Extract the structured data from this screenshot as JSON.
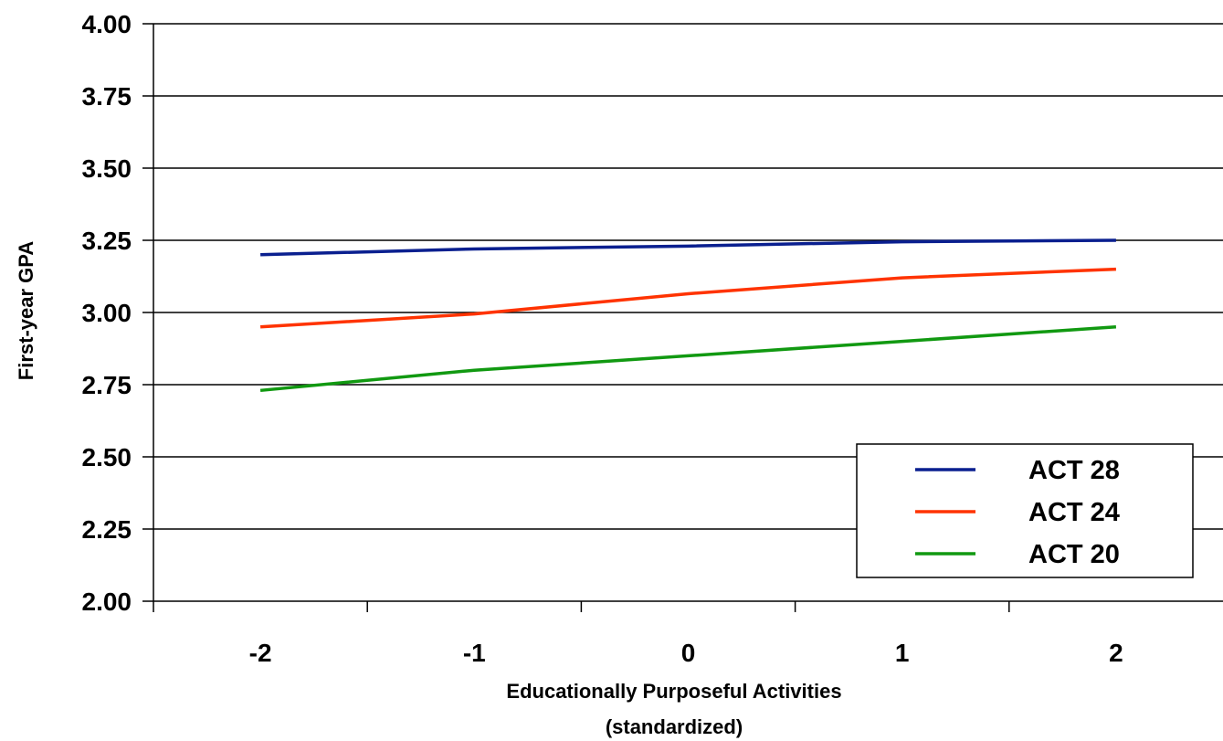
{
  "chart_data": {
    "type": "line",
    "xlabel": [
      "Educationally Purposeful Activities",
      "(standardized)"
    ],
    "ylabel": "First-year GPA",
    "x": [
      -2,
      -1,
      0,
      1,
      2
    ],
    "x_tick_labels": [
      "-2",
      "-1",
      "0",
      "1",
      "2"
    ],
    "xlim": [
      -2.5,
      2.5
    ],
    "ylim": [
      2.0,
      4.0
    ],
    "y_ticks": [
      2.0,
      2.25,
      2.5,
      2.75,
      3.0,
      3.25,
      3.5,
      3.75,
      4.0
    ],
    "y_tick_labels": [
      "2.00",
      "2.25",
      "2.50",
      "2.75",
      "3.00",
      "3.25",
      "3.50",
      "3.75",
      "4.00"
    ],
    "grid": "horizontal",
    "legend_position": "bottom-right",
    "series": [
      {
        "name": "ACT 28",
        "color": "#0a1f8f",
        "values": [
          3.2,
          3.22,
          3.23,
          3.245,
          3.25
        ]
      },
      {
        "name": "ACT 24",
        "color": "#ff3300",
        "values": [
          2.95,
          2.995,
          3.065,
          3.12,
          3.15
        ]
      },
      {
        "name": "ACT 20",
        "color": "#119911",
        "values": [
          2.73,
          2.8,
          2.85,
          2.9,
          2.95
        ]
      }
    ]
  }
}
